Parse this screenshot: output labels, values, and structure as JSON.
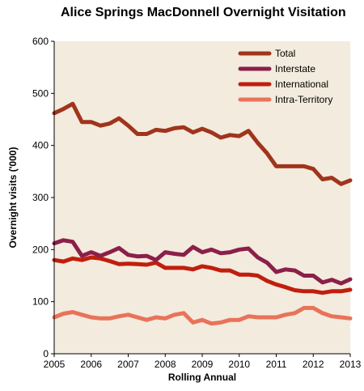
{
  "chart_data": {
    "type": "line",
    "title": "Alice Springs MacDonnell Overnight Visitation",
    "xlabel": "Rolling Annual",
    "ylabel": "Overnight visits ('000)",
    "xlim": [
      2005,
      2013
    ],
    "ylim": [
      0,
      600
    ],
    "x_ticks": [
      "2005",
      "2006",
      "2007",
      "2008",
      "2009",
      "2010",
      "2011",
      "2012",
      "2013"
    ],
    "y_ticks": [
      "0",
      "100",
      "200",
      "300",
      "400",
      "500",
      "600"
    ],
    "grid": false,
    "legend_position": "top-right",
    "x": [
      2005.0,
      2005.25,
      2005.5,
      2005.75,
      2006.0,
      2006.25,
      2006.5,
      2006.75,
      2007.0,
      2007.25,
      2007.5,
      2007.75,
      2008.0,
      2008.25,
      2008.5,
      2008.75,
      2009.0,
      2009.25,
      2009.5,
      2009.75,
      2010.0,
      2010.25,
      2010.5,
      2010.75,
      2011.0,
      2011.25,
      2011.5,
      2011.75,
      2012.0,
      2012.25,
      2012.5,
      2012.75,
      2013.0
    ],
    "series": [
      {
        "name": "Total",
        "color": "#A0341C",
        "values": [
          462,
          470,
          480,
          445,
          445,
          438,
          442,
          452,
          438,
          422,
          422,
          430,
          428,
          433,
          435,
          425,
          432,
          425,
          415,
          420,
          418,
          428,
          405,
          385,
          360,
          360,
          360,
          360,
          355,
          335,
          338,
          326,
          333
        ]
      },
      {
        "name": "Interstate",
        "color": "#8B1F4A",
        "values": [
          212,
          218,
          215,
          188,
          195,
          188,
          195,
          203,
          190,
          187,
          188,
          180,
          195,
          192,
          190,
          205,
          195,
          200,
          193,
          195,
          200,
          202,
          185,
          175,
          157,
          162,
          160,
          150,
          150,
          137,
          142,
          135,
          143
        ]
      },
      {
        "name": "International",
        "color": "#C01F0E",
        "values": [
          180,
          177,
          183,
          180,
          185,
          183,
          178,
          172,
          173,
          172,
          171,
          175,
          165,
          165,
          165,
          162,
          168,
          165,
          160,
          160,
          152,
          152,
          150,
          140,
          133,
          128,
          122,
          120,
          120,
          117,
          120,
          120,
          123
        ]
      },
      {
        "name": "Intra-Territory",
        "color": "#E8735A",
        "values": [
          70,
          77,
          80,
          75,
          70,
          68,
          68,
          72,
          75,
          70,
          65,
          70,
          68,
          75,
          78,
          60,
          65,
          58,
          60,
          65,
          65,
          72,
          70,
          70,
          70,
          75,
          78,
          88,
          88,
          78,
          72,
          70,
          68
        ]
      }
    ]
  }
}
